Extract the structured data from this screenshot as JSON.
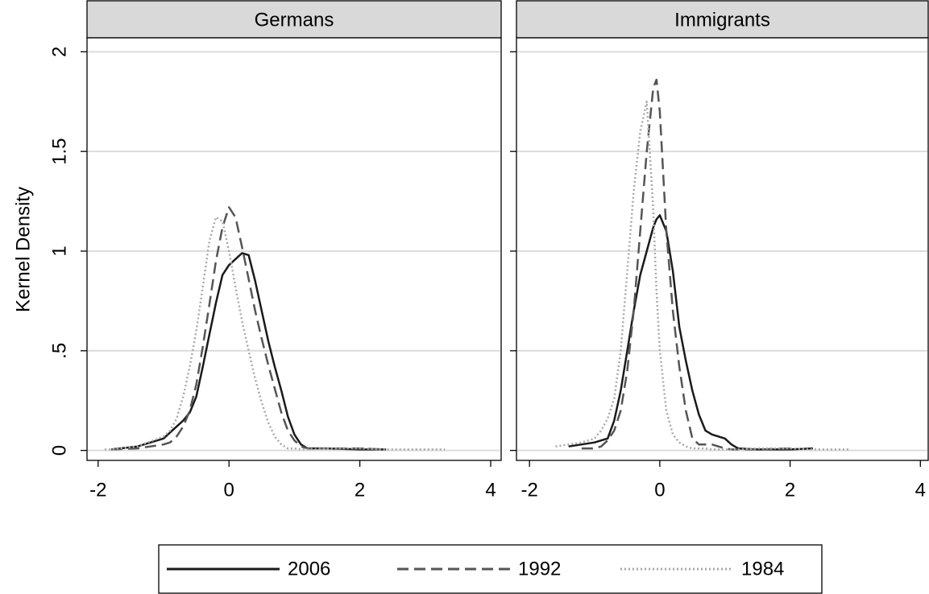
{
  "chart_data": [
    {
      "type": "line",
      "title": "Germans",
      "ylabel": "Kernel Density",
      "legend": "bottom",
      "grid": true,
      "xlim": [
        -2.17,
        4.16
      ],
      "ylim": [
        -0.05,
        2.07
      ],
      "xticks": [
        -2,
        0,
        2,
        4
      ],
      "yticks": [
        0,
        {
          "value": 0.5,
          "label": ".5"
        },
        1,
        1.5,
        2
      ],
      "x": [
        -1.9,
        -1.8,
        -1.4,
        -1.0,
        -0.9,
        -0.8,
        -0.7,
        -0.6,
        -0.5,
        -0.4,
        -0.3,
        -0.2,
        -0.1,
        0,
        0.1,
        0.2,
        0.3,
        0.4,
        0.5,
        0.6,
        0.7,
        0.8,
        0.9,
        1.0,
        1.1,
        1.2,
        1.5,
        2.0,
        2.4,
        3.0,
        3.3
      ],
      "series": [
        {
          "name": "2006",
          "color": "#1a1a1a",
          "style": "solid",
          "values": [
            null,
            0.005,
            0.02,
            0.06,
            0.09,
            0.12,
            0.15,
            0.19,
            0.27,
            0.42,
            0.58,
            0.74,
            0.88,
            0.93,
            0.96,
            0.99,
            0.98,
            0.85,
            0.7,
            0.55,
            0.42,
            0.3,
            0.17,
            0.08,
            0.03,
            0.01,
            0.01,
            0.005,
            0.005,
            null,
            null
          ]
        },
        {
          "name": "1992",
          "color": "#555555",
          "style": "dashed",
          "values": [
            null,
            0.005,
            0.01,
            0.03,
            0.04,
            0.07,
            0.12,
            0.2,
            0.33,
            0.52,
            0.73,
            0.95,
            1.12,
            1.22,
            1.17,
            1.02,
            0.86,
            0.7,
            0.56,
            0.43,
            0.31,
            0.19,
            0.1,
            0.05,
            0.02,
            0.01,
            0.01,
            0.01,
            0.005,
            null,
            null
          ]
        },
        {
          "name": "1984",
          "color": "#a8a8a8",
          "style": "dotted",
          "values": [
            0.005,
            0.005,
            0.02,
            0.07,
            0.1,
            0.16,
            0.27,
            0.42,
            0.6,
            0.82,
            1.05,
            1.17,
            1.15,
            1.0,
            0.82,
            0.65,
            0.5,
            0.36,
            0.24,
            0.14,
            0.07,
            0.03,
            0.01,
            0.01,
            0.005,
            0.005,
            0.01,
            0.01,
            0.005,
            0.005,
            0.005
          ]
        }
      ]
    },
    {
      "type": "line",
      "title": "Immigrants",
      "grid": true,
      "xlim": [
        -2.2,
        4.12
      ],
      "ylim": [
        -0.05,
        2.07
      ],
      "xticks": [
        -2,
        0,
        2,
        4
      ],
      "yticks": [
        0,
        {
          "value": 0.5,
          "label": ".5"
        },
        1,
        1.5,
        2
      ],
      "x": [
        -1.6,
        -1.4,
        -1.2,
        -1.0,
        -0.9,
        -0.8,
        -0.7,
        -0.6,
        -0.5,
        -0.4,
        -0.3,
        -0.2,
        -0.1,
        -0.05,
        0,
        0.1,
        0.2,
        0.3,
        0.4,
        0.5,
        0.6,
        0.7,
        0.8,
        0.9,
        1.0,
        1.1,
        1.2,
        1.5,
        2.0,
        2.35,
        2.9
      ],
      "series": [
        {
          "name": "2006",
          "color": "#1a1a1a",
          "style": "solid",
          "values": [
            null,
            0.02,
            0.03,
            0.04,
            0.05,
            0.06,
            0.15,
            0.3,
            0.5,
            0.7,
            0.88,
            1.0,
            1.12,
            1.16,
            1.18,
            1.1,
            0.9,
            0.62,
            0.45,
            0.3,
            0.18,
            0.1,
            0.08,
            0.07,
            0.06,
            0.03,
            0.01,
            0.005,
            0.005,
            0.01,
            null
          ]
        },
        {
          "name": "1992",
          "color": "#555555",
          "style": "dashed",
          "values": [
            null,
            null,
            0.01,
            0.01,
            0.02,
            0.05,
            0.1,
            0.2,
            0.4,
            0.7,
            1.1,
            1.5,
            1.82,
            1.86,
            1.7,
            1.1,
            0.7,
            0.42,
            0.2,
            0.06,
            0.03,
            0.03,
            0.03,
            0.02,
            0.01,
            0.005,
            0.005,
            0.005,
            0.01,
            null,
            null
          ]
        },
        {
          "name": "1984",
          "color": "#a8a8a8",
          "style": "dotted",
          "values": [
            0.02,
            0.03,
            0.04,
            0.06,
            0.1,
            0.16,
            0.26,
            0.5,
            0.9,
            1.3,
            1.6,
            1.75,
            1.2,
            0.8,
            0.5,
            0.2,
            0.08,
            0.04,
            0.02,
            0.01,
            0.01,
            0.01,
            0.005,
            0.005,
            0.005,
            0.005,
            0.005,
            0.01,
            0.01,
            0.005,
            0.005
          ]
        }
      ]
    }
  ]
}
